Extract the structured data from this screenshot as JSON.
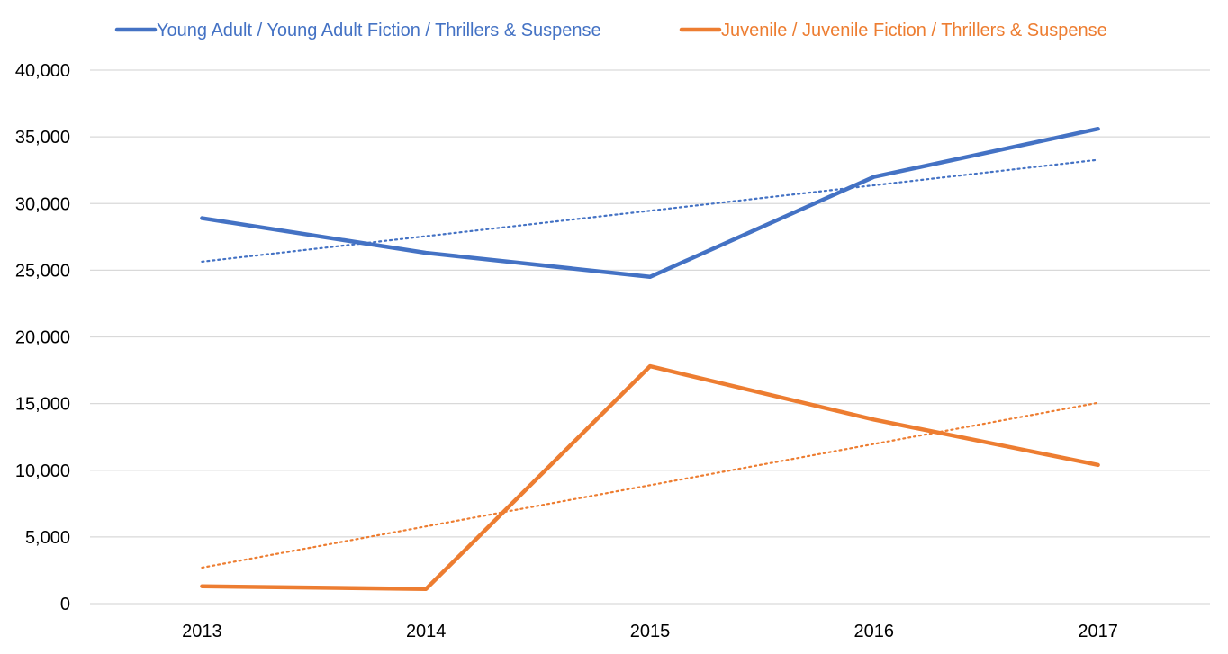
{
  "chart_data": {
    "type": "line",
    "title": "",
    "xlabel": "",
    "ylabel": "",
    "categories": [
      "2013",
      "2014",
      "2015",
      "2016",
      "2017"
    ],
    "ylim": [
      0,
      40000
    ],
    "yticks": [
      0,
      5000,
      10000,
      15000,
      20000,
      25000,
      30000,
      35000,
      40000
    ],
    "ytick_labels": [
      "0",
      "5,000",
      "10,000",
      "15,000",
      "20,000",
      "25,000",
      "30,000",
      "35,000",
      "40,000"
    ],
    "grid": "horizontal",
    "legend_position": "top",
    "series": [
      {
        "name": "Young Adult / Young Adult Fiction / Thrillers & Suspense",
        "color": "#4472C4",
        "values": [
          28900,
          26300,
          24500,
          32000,
          35600
        ],
        "trendline": "linear, dotted"
      },
      {
        "name": "Juvenile / Juvenile Fiction / Thrillers & Suspense",
        "color": "#ED7D31",
        "values": [
          1300,
          1100,
          17800,
          13800,
          10400
        ],
        "trendline": "linear, dotted"
      }
    ]
  }
}
